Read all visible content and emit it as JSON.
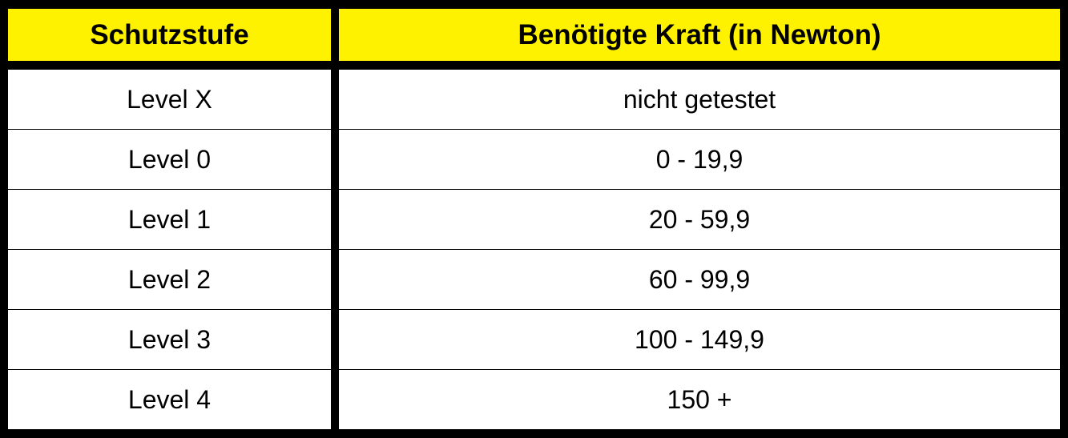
{
  "table": {
    "headers": [
      "Schutzstufe",
      "Benötigte Kraft (in Newton)"
    ],
    "rows": [
      [
        "Level X",
        "nicht getestet"
      ],
      [
        "Level 0",
        "0 - 19,9"
      ],
      [
        "Level 1",
        "20 - 59,9"
      ],
      [
        "Level 2",
        "60 - 99,9"
      ],
      [
        "Level 3",
        "100 - 149,9"
      ],
      [
        "Level 4",
        "150 +"
      ]
    ]
  },
  "colors": {
    "header_bg": "#fff200",
    "border": "#000000",
    "cell_bg": "#ffffff"
  }
}
